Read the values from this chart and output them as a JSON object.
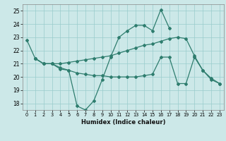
{
  "xlabel": "Humidex (Indice chaleur)",
  "background_color": "#cce8e8",
  "grid_color": "#99cccc",
  "line_color": "#2e7d6e",
  "xlim": [
    -0.5,
    23.5
  ],
  "ylim": [
    17.5,
    25.5
  ],
  "yticks": [
    18,
    19,
    20,
    21,
    22,
    23,
    24,
    25
  ],
  "xticks": [
    0,
    1,
    2,
    3,
    4,
    5,
    6,
    7,
    8,
    9,
    10,
    11,
    12,
    13,
    14,
    15,
    16,
    17,
    18,
    19,
    20,
    21,
    22,
    23
  ],
  "y1": [
    22.8,
    21.4,
    21.0,
    21.0,
    20.6,
    20.5,
    17.8,
    17.5,
    18.2,
    19.8,
    21.5,
    23.0,
    23.5,
    23.9,
    23.9,
    23.5,
    25.1,
    23.7,
    null,
    null,
    null,
    null,
    null,
    null
  ],
  "y2": [
    null,
    21.4,
    21.0,
    21.0,
    21.0,
    21.1,
    21.2,
    21.3,
    21.4,
    21.5,
    21.6,
    21.8,
    22.0,
    22.2,
    22.4,
    22.5,
    22.7,
    22.9,
    23.0,
    22.9,
    21.6,
    20.5,
    19.8,
    19.5
  ],
  "y3": [
    null,
    21.4,
    21.0,
    21.0,
    20.7,
    20.5,
    20.3,
    20.2,
    20.1,
    20.1,
    20.0,
    20.0,
    20.0,
    20.0,
    20.1,
    20.2,
    21.5,
    21.5,
    19.5,
    19.5,
    21.5,
    20.5,
    19.9,
    19.5
  ]
}
